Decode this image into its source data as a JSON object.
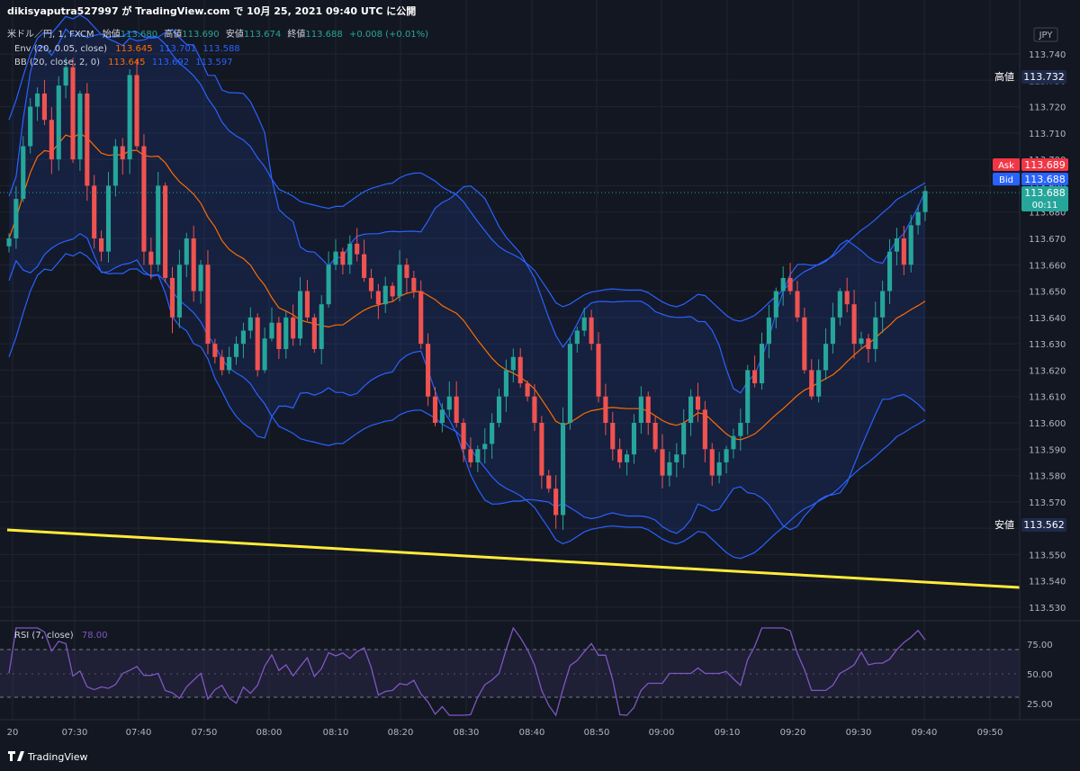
{
  "header": {
    "publisher": "dikisyaputra527997 が TradingView.com で 10月 25, 2021 09:40 UTC に公開",
    "symbol_line": "米ドル／円, 1, FXCM",
    "open_label": "始値",
    "open_value": "113.680",
    "high_label": "高値",
    "high_value": "113.690",
    "low_label": "安値",
    "low_value": "113.674",
    "close_label": "終値",
    "close_value": "113.688",
    "change": "+0.008 (+0.01%)",
    "env_label": "Env (20, 0.05, close)",
    "env_values": [
      "113.645",
      "113.701",
      "113.588"
    ],
    "bb_label": "BB (20, close, 2, 0)",
    "bb_values": [
      "113.645",
      "113.692",
      "113.597"
    ],
    "currency": "JPY"
  },
  "price_axis": {
    "ticks": [
      "113.740",
      "113.730",
      "113.720",
      "113.710",
      "113.700",
      "113.690",
      "113.680",
      "113.670",
      "113.660",
      "113.650",
      "113.640",
      "113.630",
      "113.620",
      "113.610",
      "113.600",
      "113.590",
      "113.580",
      "113.570",
      "113.560",
      "113.550",
      "113.540",
      "113.530"
    ],
    "high_tag": {
      "label": "高値",
      "value": "113.732"
    },
    "low_tag": {
      "label": "安値",
      "value": "113.562"
    },
    "ask_tag": {
      "label": "Ask",
      "value": "113.689"
    },
    "bid_tag": {
      "label": "Bid",
      "value": "113.688"
    },
    "last_tag": {
      "value": "113.688",
      "countdown": "00:11"
    }
  },
  "time_axis": {
    "ticks": [
      "20",
      "07:30",
      "07:40",
      "07:50",
      "08:00",
      "08:10",
      "08:20",
      "08:30",
      "08:40",
      "08:50",
      "09:00",
      "09:10",
      "09:20",
      "09:30",
      "09:40",
      "09:50"
    ]
  },
  "rsi": {
    "label": "RSI (7, close)",
    "value": "78.00",
    "ticks": [
      "75.00",
      "50.00",
      "25.00"
    ]
  },
  "footer": {
    "brand": "TradingView"
  },
  "colors": {
    "background": "#131722",
    "up": "#26a69a",
    "down": "#ef5350",
    "env_band": "#2962ff",
    "bb_band": "#2962ff",
    "basis": "#ff6d00",
    "trendline": "#ffeb3b",
    "rsi": "#7e57c2",
    "ask": "#f23645",
    "bid": "#2962ff",
    "tag_dark": "#1e2a4a"
  },
  "chart_data": {
    "type": "candlestick",
    "timeframe": "1m",
    "x_start": "07:21",
    "x_end": "09:40",
    "ylim": [
      113.53,
      113.745
    ],
    "close_series": [
      113.67,
      113.685,
      113.705,
      113.72,
      113.725,
      113.715,
      113.7,
      113.728,
      113.735,
      113.7,
      113.725,
      113.69,
      113.67,
      113.665,
      113.69,
      113.705,
      113.7,
      113.732,
      113.705,
      113.665,
      113.66,
      113.69,
      113.655,
      113.64,
      113.66,
      113.67,
      113.65,
      113.66,
      113.63,
      113.625,
      113.62,
      113.625,
      113.63,
      113.635,
      113.64,
      113.62,
      113.632,
      113.638,
      113.628,
      113.64,
      113.632,
      113.65,
      113.64,
      113.628,
      113.645,
      113.66,
      113.665,
      113.66,
      113.668,
      113.664,
      113.655,
      113.65,
      113.645,
      113.652,
      113.648,
      113.66,
      113.655,
      113.65,
      113.63,
      113.61,
      113.6,
      113.605,
      113.61,
      113.6,
      113.59,
      113.585,
      113.59,
      113.592,
      113.6,
      113.61,
      113.62,
      113.625,
      113.615,
      113.61,
      113.6,
      113.58,
      113.575,
      113.565,
      113.6,
      113.63,
      113.635,
      113.64,
      113.63,
      113.61,
      113.6,
      113.59,
      113.585,
      113.588,
      113.6,
      113.61,
      113.6,
      113.59,
      113.58,
      113.585,
      113.588,
      113.6,
      113.61,
      113.605,
      113.59,
      113.58,
      113.585,
      113.59,
      113.595,
      113.6,
      113.62,
      113.615,
      113.63,
      113.64,
      113.65,
      113.655,
      113.65,
      113.64,
      113.62,
      113.61,
      113.62,
      113.63,
      113.64,
      113.65,
      113.645,
      113.63,
      113.632,
      113.628,
      113.64,
      113.65,
      113.665,
      113.67,
      113.66,
      113.675,
      113.68,
      113.688
    ]
  }
}
